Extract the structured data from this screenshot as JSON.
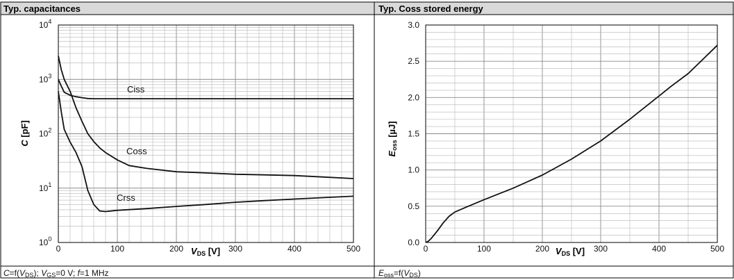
{
  "panels": [
    {
      "title": "Typ. capacitances",
      "footer": "C=f(VDS); VGS=0 V; f=1 MHz"
    },
    {
      "title": "Typ. Coss stored energy",
      "footer": "Eoss=f(VDS)"
    }
  ],
  "chart_data": [
    {
      "type": "line",
      "title": "Typ. capacitances",
      "xlabel": "VDS [V]",
      "ylabel": "C [pF]",
      "xlim": [
        0,
        500
      ],
      "ylim": [
        1,
        10000
      ],
      "yscale": "log",
      "grid": true,
      "x_ticks": [
        "0",
        "100",
        "200",
        "300",
        "400",
        "500"
      ],
      "y_tick_base": "10",
      "y_tick_exponents": [
        "0",
        "1",
        "2",
        "3",
        "4"
      ],
      "series": [
        {
          "name": "Ciss",
          "points": [
            [
              0,
              1000
            ],
            [
              5,
              750
            ],
            [
              10,
              580
            ],
            [
              20,
              510
            ],
            [
              30,
              480
            ],
            [
              40,
              460
            ],
            [
              50,
              445
            ],
            [
              60,
              440
            ],
            [
              100,
              440
            ],
            [
              200,
              440
            ],
            [
              300,
              440
            ],
            [
              400,
              440
            ],
            [
              500,
              440
            ]
          ]
        },
        {
          "name": "Coss",
          "points": [
            [
              0,
              2700
            ],
            [
              5,
              1500
            ],
            [
              10,
              1000
            ],
            [
              20,
              600
            ],
            [
              30,
              300
            ],
            [
              40,
              170
            ],
            [
              50,
              100
            ],
            [
              60,
              72
            ],
            [
              70,
              55
            ],
            [
              80,
              45
            ],
            [
              100,
              33
            ],
            [
              120,
              26
            ],
            [
              150,
              23
            ],
            [
              200,
              20
            ],
            [
              250,
              19
            ],
            [
              300,
              18
            ],
            [
              350,
              17.5
            ],
            [
              400,
              17
            ],
            [
              450,
              16
            ],
            [
              500,
              15
            ]
          ]
        },
        {
          "name": "Crss",
          "points": [
            [
              0,
              600
            ],
            [
              5,
              250
            ],
            [
              10,
              120
            ],
            [
              20,
              70
            ],
            [
              30,
              45
            ],
            [
              40,
              25
            ],
            [
              50,
              9
            ],
            [
              60,
              5
            ],
            [
              70,
              3.8
            ],
            [
              80,
              3.7
            ],
            [
              100,
              3.9
            ],
            [
              150,
              4.2
            ],
            [
              200,
              4.6
            ],
            [
              250,
              5.0
            ],
            [
              300,
              5.5
            ],
            [
              350,
              5.9
            ],
            [
              400,
              6.3
            ],
            [
              450,
              6.7
            ],
            [
              500,
              7.1
            ]
          ]
        }
      ]
    },
    {
      "type": "line",
      "title": "Typ. Coss stored energy",
      "xlabel": "VDS [V]",
      "ylabel": "Eoss [µJ]",
      "xlim": [
        0,
        500
      ],
      "ylim": [
        0,
        3.0
      ],
      "grid": true,
      "x_ticks": [
        "0",
        "100",
        "200",
        "300",
        "400",
        "500"
      ],
      "y_ticks": [
        "0.0",
        "0.5",
        "1.0",
        "1.5",
        "2.0",
        "2.5",
        "3.0"
      ],
      "series": [
        {
          "points": [
            [
              0,
              0
            ],
            [
              5,
              0.02
            ],
            [
              10,
              0.06
            ],
            [
              20,
              0.16
            ],
            [
              30,
              0.27
            ],
            [
              40,
              0.36
            ],
            [
              50,
              0.42
            ],
            [
              70,
              0.49
            ],
            [
              100,
              0.59
            ],
            [
              150,
              0.75
            ],
            [
              200,
              0.93
            ],
            [
              250,
              1.15
            ],
            [
              300,
              1.4
            ],
            [
              350,
              1.7
            ],
            [
              400,
              2.02
            ],
            [
              420,
              2.15
            ],
            [
              450,
              2.33
            ],
            [
              500,
              2.72
            ]
          ]
        }
      ]
    }
  ]
}
